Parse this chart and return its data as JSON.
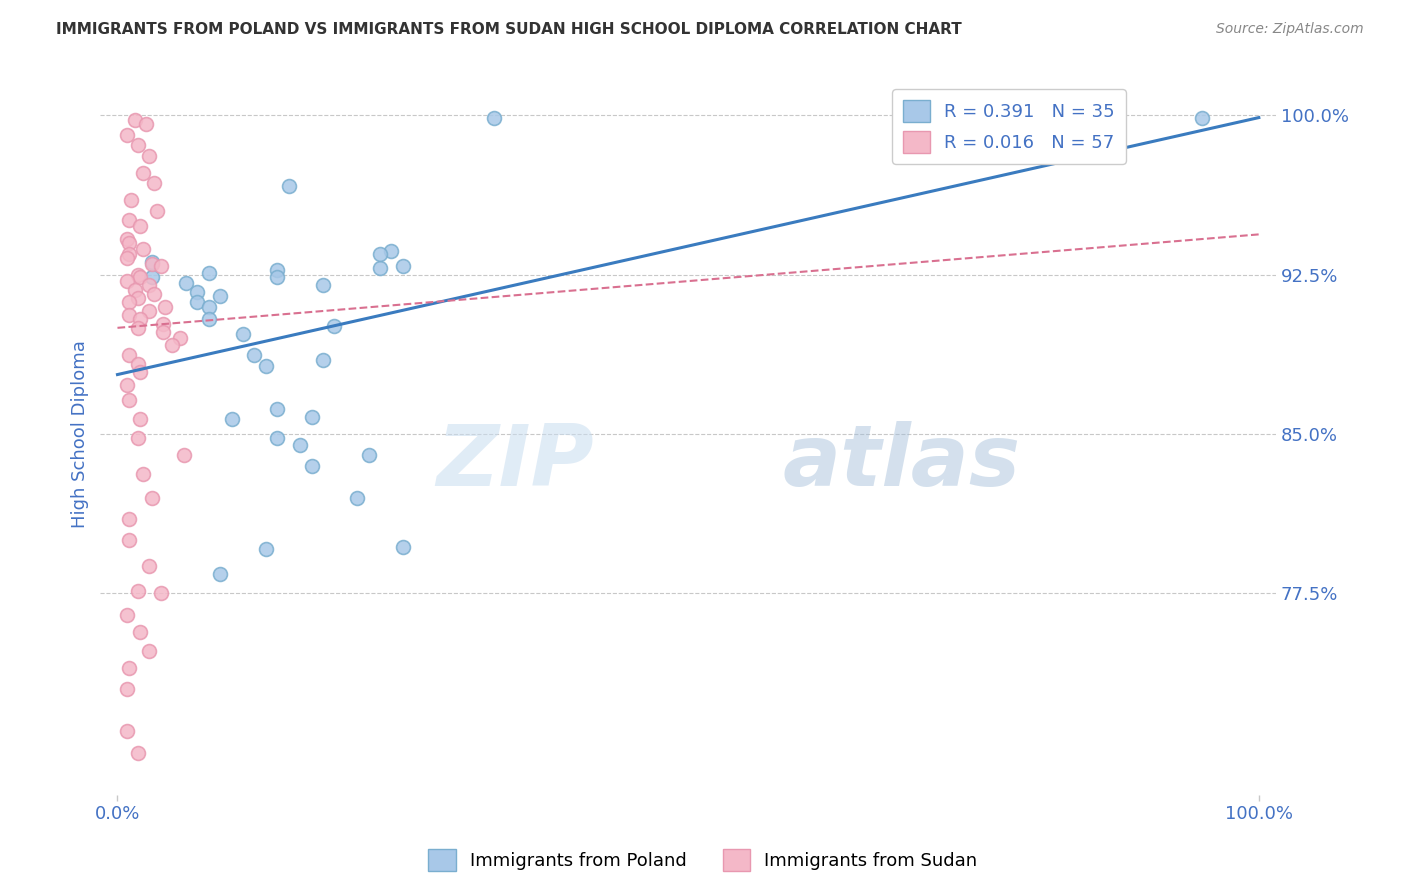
{
  "title": "IMMIGRANTS FROM POLAND VS IMMIGRANTS FROM SUDAN HIGH SCHOOL DIPLOMA CORRELATION CHART",
  "source": "Source: ZipAtlas.com",
  "ylabel": "High School Diploma",
  "y_ticks": [
    0.775,
    0.85,
    0.925,
    1.0
  ],
  "y_tick_labels": [
    "77.5%",
    "85.0%",
    "92.5%",
    "100.0%"
  ],
  "x_ticks": [
    0.0,
    1.0
  ],
  "x_tick_labels": [
    "0.0%",
    "100.0%"
  ],
  "y_min": 0.68,
  "y_max": 1.02,
  "x_min": -0.015,
  "x_max": 1.015,
  "poland_color": "#a8c8e8",
  "sudan_color": "#f4b8c8",
  "poland_edge_color": "#7aaecf",
  "sudan_edge_color": "#e898b0",
  "poland_line_color": "#3a7bbf",
  "sudan_line_color": "#d97090",
  "poland_R": "0.391",
  "poland_N": "35",
  "sudan_R": "0.016",
  "sudan_N": "57",
  "legend_label_poland": "Immigrants from Poland",
  "legend_label_sudan": "Immigrants from Sudan",
  "watermark_zip": "ZIP",
  "watermark_atlas": "atlas",
  "poland_scatter_x": [
    0.33,
    0.03,
    0.15,
    0.08,
    0.24,
    0.03,
    0.06,
    0.07,
    0.09,
    0.07,
    0.08,
    0.14,
    0.14,
    0.08,
    0.19,
    0.23,
    0.18,
    0.25,
    0.11,
    0.12,
    0.18,
    0.13,
    0.23,
    0.14,
    0.17,
    0.1,
    0.14,
    0.16,
    0.22,
    0.17,
    0.21,
    0.95,
    0.25,
    0.13,
    0.09
  ],
  "poland_scatter_y": [
    0.999,
    0.931,
    0.967,
    0.926,
    0.936,
    0.924,
    0.921,
    0.917,
    0.915,
    0.912,
    0.91,
    0.927,
    0.924,
    0.904,
    0.901,
    0.928,
    0.92,
    0.929,
    0.897,
    0.887,
    0.885,
    0.882,
    0.935,
    0.862,
    0.858,
    0.857,
    0.848,
    0.845,
    0.84,
    0.835,
    0.82,
    0.999,
    0.797,
    0.796,
    0.784
  ],
  "poland_line_x0": 0.0,
  "poland_line_x1": 1.0,
  "poland_line_y0": 0.878,
  "poland_line_y1": 0.999,
  "sudan_line_x0": 0.0,
  "sudan_line_x1": 1.0,
  "sudan_line_y0": 0.9,
  "sudan_line_y1": 0.944,
  "sudan_scatter_x": [
    0.015,
    0.025,
    0.008,
    0.018,
    0.028,
    0.022,
    0.032,
    0.012,
    0.035,
    0.01,
    0.02,
    0.008,
    0.01,
    0.022,
    0.01,
    0.008,
    0.03,
    0.038,
    0.018,
    0.02,
    0.008,
    0.028,
    0.015,
    0.032,
    0.018,
    0.01,
    0.042,
    0.028,
    0.01,
    0.02,
    0.04,
    0.018,
    0.04,
    0.055,
    0.048,
    0.01,
    0.018,
    0.02,
    0.008,
    0.01,
    0.02,
    0.018,
    0.058,
    0.022,
    0.03,
    0.01,
    0.01,
    0.028,
    0.018,
    0.038,
    0.008,
    0.02,
    0.028,
    0.01,
    0.008,
    0.008,
    0.018
  ],
  "sudan_scatter_y": [
    0.998,
    0.996,
    0.991,
    0.986,
    0.981,
    0.973,
    0.968,
    0.96,
    0.955,
    0.951,
    0.948,
    0.942,
    0.94,
    0.937,
    0.935,
    0.933,
    0.93,
    0.929,
    0.925,
    0.924,
    0.922,
    0.92,
    0.918,
    0.916,
    0.914,
    0.912,
    0.91,
    0.908,
    0.906,
    0.904,
    0.902,
    0.9,
    0.898,
    0.895,
    0.892,
    0.887,
    0.883,
    0.879,
    0.873,
    0.866,
    0.857,
    0.848,
    0.84,
    0.831,
    0.82,
    0.81,
    0.8,
    0.788,
    0.776,
    0.775,
    0.765,
    0.757,
    0.748,
    0.74,
    0.73,
    0.71,
    0.7
  ],
  "background_color": "#ffffff",
  "grid_color": "#c8c8c8",
  "title_color": "#333333",
  "tick_label_color": "#4472c4",
  "ylabel_color": "#4472c4",
  "source_color": "#888888",
  "legend_border_color": "#cccccc"
}
